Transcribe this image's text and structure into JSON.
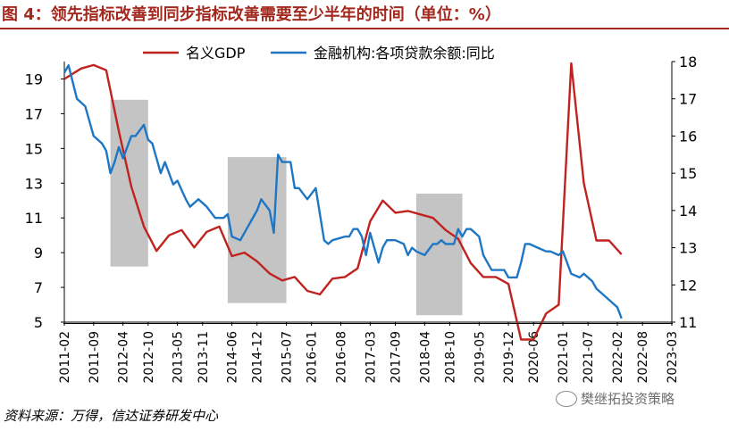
{
  "header": {
    "title": "图 4：领先指标改善到同步指标改善需要至少半年的时间（单位：%）"
  },
  "footer": {
    "source": "资料来源：万得，信达证券研发中心",
    "watermark": "樊继拓投资策略"
  },
  "chart_data": {
    "type": "line",
    "x_labels": [
      "2011-02",
      "2011-09",
      "2012-04",
      "2012-10",
      "2013-05",
      "2013-11",
      "2014-06",
      "2014-12",
      "2015-07",
      "2016-01",
      "2016-08",
      "2017-03",
      "2017-09",
      "2018-04",
      "2018-10",
      "2019-05",
      "2019-12",
      "2020-06",
      "2021-01",
      "2021-07",
      "2022-02",
      "2022-08",
      "2023-03"
    ],
    "y_left": {
      "min": 5,
      "max": 20,
      "ticks": [
        5,
        7,
        9,
        11,
        13,
        15,
        17,
        19
      ]
    },
    "y_right": {
      "min": 11,
      "max": 18,
      "ticks": [
        11,
        12,
        13,
        14,
        15,
        16,
        17,
        18
      ]
    },
    "legend_position": "top-center",
    "colors": {
      "gdp": "#c0231f",
      "loan": "#1f77c4",
      "shade": "#c4c4c4"
    },
    "shaded_periods": [
      {
        "start": "2012-01",
        "end": "2012-10",
        "ylow": 8.2,
        "yhigh": 17.8
      },
      {
        "start": "2014-05",
        "end": "2015-07",
        "ylow": 6.1,
        "yhigh": 14.5
      },
      {
        "start": "2018-02",
        "end": "2019-01",
        "ylow": 5.4,
        "yhigh": 12.4
      }
    ],
    "series": [
      {
        "name": "名义GDP",
        "axis": "left",
        "color": "#c0231f",
        "points": [
          [
            "2011-02",
            19.0
          ],
          [
            "2011-06",
            19.6
          ],
          [
            "2011-09",
            19.8
          ],
          [
            "2011-12",
            19.5
          ],
          [
            "2012-03",
            16.0
          ],
          [
            "2012-06",
            12.8
          ],
          [
            "2012-09",
            10.5
          ],
          [
            "2012-12",
            9.1
          ],
          [
            "2013-03",
            10.0
          ],
          [
            "2013-06",
            10.3
          ],
          [
            "2013-09",
            9.3
          ],
          [
            "2013-12",
            10.2
          ],
          [
            "2014-03",
            10.5
          ],
          [
            "2014-06",
            8.8
          ],
          [
            "2014-09",
            9.0
          ],
          [
            "2014-12",
            8.5
          ],
          [
            "2015-03",
            7.8
          ],
          [
            "2015-06",
            7.4
          ],
          [
            "2015-09",
            7.6
          ],
          [
            "2015-12",
            6.8
          ],
          [
            "2016-03",
            6.6
          ],
          [
            "2016-06",
            7.5
          ],
          [
            "2016-09",
            7.6
          ],
          [
            "2016-12",
            8.1
          ],
          [
            "2017-03",
            10.8
          ],
          [
            "2017-06",
            12.0
          ],
          [
            "2017-09",
            11.3
          ],
          [
            "2017-12",
            11.4
          ],
          [
            "2018-03",
            11.2
          ],
          [
            "2018-06",
            11.0
          ],
          [
            "2018-09",
            10.3
          ],
          [
            "2018-12",
            9.8
          ],
          [
            "2019-03",
            8.4
          ],
          [
            "2019-06",
            7.6
          ],
          [
            "2019-09",
            7.6
          ],
          [
            "2019-12",
            7.2
          ],
          [
            "2020-03",
            4.0
          ],
          [
            "2020-06",
            4.0
          ],
          [
            "2020-09",
            5.5
          ],
          [
            "2020-12",
            6.0
          ],
          [
            "2021-03",
            19.9
          ],
          [
            "2021-06",
            13.0
          ],
          [
            "2021-09",
            9.7
          ],
          [
            "2021-12",
            9.7
          ],
          [
            "2022-03",
            8.9
          ]
        ]
      },
      {
        "name": "金融机构:各项贷款余额:同比",
        "axis": "right",
        "color": "#1f77c4",
        "points": [
          [
            "2011-02",
            17.7
          ],
          [
            "2011-03",
            17.9
          ],
          [
            "2011-05",
            17.0
          ],
          [
            "2011-07",
            16.8
          ],
          [
            "2011-09",
            16.0
          ],
          [
            "2011-11",
            15.8
          ],
          [
            "2011-12",
            15.6
          ],
          [
            "2012-01",
            15.0
          ],
          [
            "2012-02",
            15.3
          ],
          [
            "2012-03",
            15.7
          ],
          [
            "2012-04",
            15.4
          ],
          [
            "2012-06",
            16.0
          ],
          [
            "2012-07",
            16.0
          ],
          [
            "2012-09",
            16.3
          ],
          [
            "2012-10",
            15.9
          ],
          [
            "2012-11",
            15.8
          ],
          [
            "2013-01",
            15.0
          ],
          [
            "2013-02",
            15.3
          ],
          [
            "2013-04",
            14.7
          ],
          [
            "2013-05",
            14.8
          ],
          [
            "2013-07",
            14.3
          ],
          [
            "2013-08",
            14.1
          ],
          [
            "2013-10",
            14.3
          ],
          [
            "2013-12",
            14.1
          ],
          [
            "2014-02",
            13.8
          ],
          [
            "2014-04",
            13.8
          ],
          [
            "2014-05",
            13.9
          ],
          [
            "2014-06",
            13.3
          ],
          [
            "2014-08",
            13.2
          ],
          [
            "2014-10",
            13.6
          ],
          [
            "2014-12",
            14.0
          ],
          [
            "2015-01",
            14.3
          ],
          [
            "2015-03",
            14.0
          ],
          [
            "2015-04",
            13.4
          ],
          [
            "2015-05",
            15.5
          ],
          [
            "2015-06",
            15.3
          ],
          [
            "2015-08",
            15.3
          ],
          [
            "2015-09",
            14.6
          ],
          [
            "2015-10",
            14.6
          ],
          [
            "2015-12",
            14.3
          ],
          [
            "2016-02",
            14.6
          ],
          [
            "2016-04",
            13.2
          ],
          [
            "2016-05",
            13.1
          ],
          [
            "2016-06",
            13.2
          ],
          [
            "2016-09",
            13.3
          ],
          [
            "2016-10",
            13.3
          ],
          [
            "2016-11",
            13.5
          ],
          [
            "2016-12",
            13.5
          ],
          [
            "2017-01",
            13.3
          ],
          [
            "2017-02",
            12.8
          ],
          [
            "2017-03",
            13.4
          ],
          [
            "2017-05",
            12.6
          ],
          [
            "2017-06",
            13.0
          ],
          [
            "2017-07",
            13.2
          ],
          [
            "2017-09",
            13.2
          ],
          [
            "2017-11",
            13.1
          ],
          [
            "2017-12",
            12.8
          ],
          [
            "2018-01",
            13.0
          ],
          [
            "2018-02",
            12.9
          ],
          [
            "2018-04",
            12.8
          ],
          [
            "2018-06",
            13.1
          ],
          [
            "2018-07",
            13.1
          ],
          [
            "2018-08",
            13.2
          ],
          [
            "2018-09",
            13.1
          ],
          [
            "2018-11",
            13.1
          ],
          [
            "2018-12",
            13.5
          ],
          [
            "2019-01",
            13.3
          ],
          [
            "2019-02",
            13.5
          ],
          [
            "2019-03",
            13.5
          ],
          [
            "2019-05",
            13.3
          ],
          [
            "2019-06",
            12.8
          ],
          [
            "2019-08",
            12.4
          ],
          [
            "2019-09",
            12.4
          ],
          [
            "2019-11",
            12.4
          ],
          [
            "2019-12",
            12.2
          ],
          [
            "2020-02",
            12.2
          ],
          [
            "2020-03",
            12.6
          ],
          [
            "2020-04",
            13.1
          ],
          [
            "2020-05",
            13.1
          ],
          [
            "2020-07",
            13.0
          ],
          [
            "2020-09",
            12.9
          ],
          [
            "2020-10",
            12.9
          ],
          [
            "2020-12",
            12.8
          ],
          [
            "2021-01",
            12.9
          ],
          [
            "2021-03",
            12.3
          ],
          [
            "2021-05",
            12.2
          ],
          [
            "2021-06",
            12.3
          ],
          [
            "2021-08",
            12.1
          ],
          [
            "2021-09",
            11.9
          ],
          [
            "2021-10",
            11.8
          ],
          [
            "2021-12",
            11.6
          ],
          [
            "2022-01",
            11.5
          ],
          [
            "2022-02",
            11.4
          ],
          [
            "2022-03",
            11.1
          ]
        ]
      }
    ]
  }
}
